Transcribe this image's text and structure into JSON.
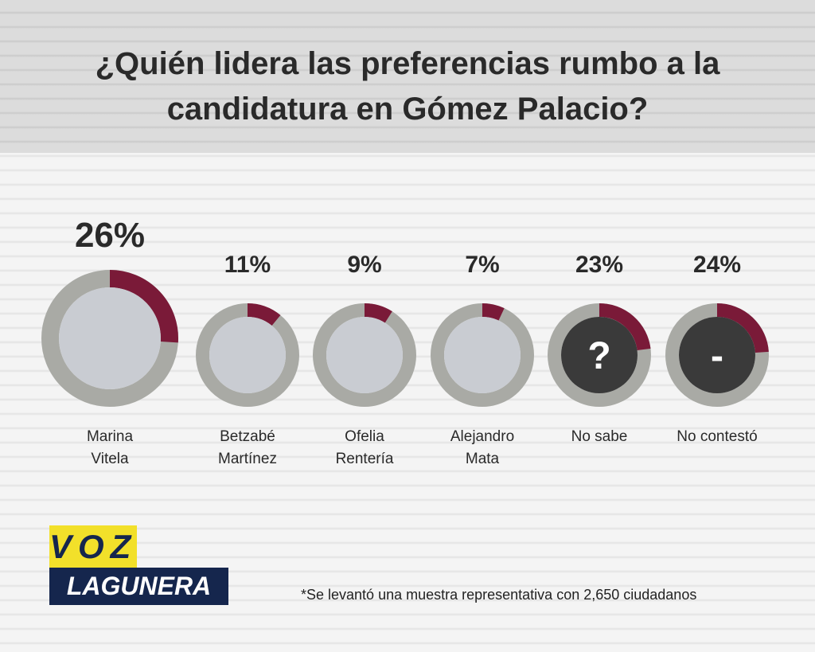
{
  "chart_data": {
    "type": "donut",
    "title": "¿Quién lidera las preferencias rumbo a la candidatura en Gómez Palacio?",
    "categories": [
      "Marina\nVitela",
      "Betzabé\nMartínez",
      "Ofelia\nRentería",
      "Alejandro\nMata",
      "No sabe",
      "No contestó"
    ],
    "values": [
      26,
      11,
      9,
      7,
      23,
      24
    ],
    "value_labels": [
      "26%",
      "11%",
      "9%",
      "7%",
      "23%",
      "24%"
    ],
    "center_labels": [
      null,
      null,
      null,
      null,
      "?",
      "-"
    ],
    "color": "#7a1a38",
    "note": "*Se levantó una muestra representativa con 2,650 ciudadanos"
  },
  "logo": {
    "line1": "VOZ",
    "line2": "LAGUNERA"
  }
}
